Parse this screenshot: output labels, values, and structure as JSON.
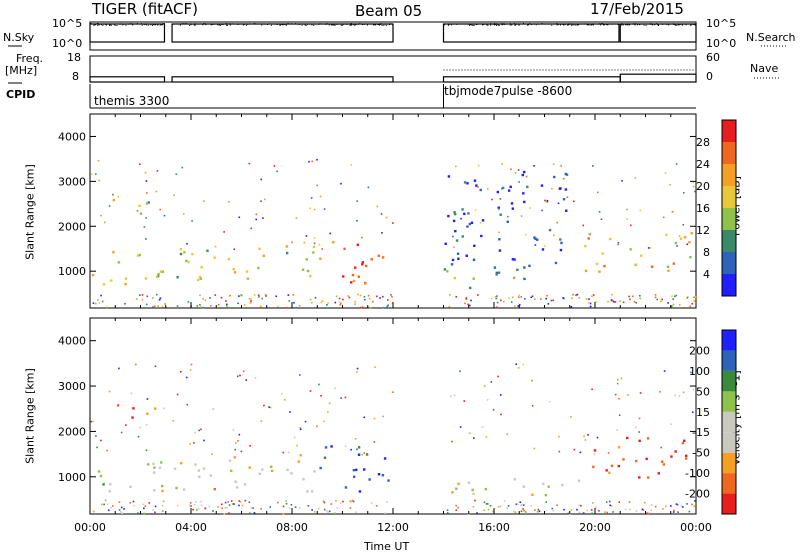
{
  "header": {
    "radar": "TIGER (fitACF)",
    "beam": "Beam 05",
    "date": "17/Feb/2015"
  },
  "sidebar_labels": {
    "nsky": "N.Sky",
    "freq_line1": "Freq.",
    "freq_line2": "[MHz]",
    "cpid": "CPID",
    "nsearch": "N.Search",
    "nave": "Nave"
  },
  "cpid_labels": [
    "themis 3300",
    "tbjmode7pulse -8600"
  ],
  "colors": {
    "power": [
      "#1f1fff",
      "#2d63b8",
      "#3a8a6a",
      "#8fc24a",
      "#e8c83a",
      "#f5a025",
      "#f06820",
      "#e81e1e"
    ],
    "velocity": [
      "#e81e1e",
      "#f06820",
      "#f5a025",
      "#c9c9c0",
      "#c9c9c0",
      "#8fc24a",
      "#3a8a3a",
      "#2d63b8",
      "#1f1fff"
    ]
  },
  "chart_data": [
    {
      "type": "line",
      "name": "nsky_nsearch",
      "ylabel": "",
      "left_ticks": [
        "10^5",
        "10^0"
      ],
      "right_ticks": [
        "10^5",
        "10^0"
      ],
      "segments_hours": [
        [
          0.0,
          2.95
        ],
        [
          3.25,
          12.0
        ],
        [
          14.0,
          20.95
        ],
        [
          21.0,
          24.0
        ]
      ]
    },
    {
      "type": "line",
      "name": "freq_nave",
      "left_ticks": [
        "18",
        "8"
      ],
      "right_ticks": [
        "60",
        "0"
      ],
      "freq_mhz": [
        {
          "start": 0.0,
          "end": 2.95,
          "value": 10
        },
        {
          "start": 3.25,
          "end": 12.0,
          "value": 10
        },
        {
          "start": 14.0,
          "end": 21.0,
          "value": 10
        },
        {
          "start": 21.0,
          "end": 24.0,
          "value": 11
        }
      ],
      "nave": [
        {
          "start": 14.0,
          "end": 24.0,
          "value": 20
        }
      ]
    },
    {
      "type": "heatmap",
      "name": "power",
      "ylabel": "Slant Range [km]",
      "colorbar_label": "Power [dB]",
      "colorbar_ticks": [
        4,
        8,
        12,
        16,
        20,
        24,
        28
      ],
      "y_ticks": [
        1000,
        2000,
        3000,
        4000
      ],
      "ylim": [
        180,
        4500
      ],
      "xlim_hours": [
        0,
        24
      ],
      "regions": [
        {
          "t0": 0.0,
          "t1": 2.9,
          "r0": 700,
          "r1": 1500,
          "level": 0.55
        },
        {
          "t0": 0.6,
          "t1": 2.6,
          "r0": 2300,
          "r1": 2700,
          "level": 0.45
        },
        {
          "t0": 3.3,
          "t1": 9.0,
          "r0": 800,
          "r1": 1600,
          "level": 0.5
        },
        {
          "t0": 9.0,
          "t1": 11.8,
          "r0": 700,
          "r1": 1700,
          "level": 0.85
        },
        {
          "t0": 14.0,
          "t1": 17.5,
          "r0": 600,
          "r1": 1100,
          "level": 0.35
        },
        {
          "t0": 14.0,
          "t1": 19.0,
          "r0": 1100,
          "r1": 3300,
          "level": 0.12
        },
        {
          "t0": 19.5,
          "t1": 23.8,
          "r0": 1000,
          "r1": 1900,
          "level": 0.6
        }
      ]
    },
    {
      "type": "heatmap",
      "name": "velocity",
      "ylabel": "Slant Range [km]",
      "colorbar_label": "Velocity [m s^-1]",
      "colorbar_ticks": [
        -200,
        -100,
        -50,
        -15,
        15,
        50,
        100,
        200
      ],
      "y_ticks": [
        1000,
        2000,
        3000,
        4000
      ],
      "ylim": [
        180,
        4500
      ],
      "xlim_hours": [
        0,
        24
      ],
      "x_ticks": [
        "00:00",
        "04:00",
        "08:00",
        "12:00",
        "16:00",
        "20:00",
        "00:00"
      ],
      "xlabel": "Time UT",
      "regions": [
        {
          "t0": 0.0,
          "t1": 2.9,
          "r0": 700,
          "r1": 1500,
          "level": 0.45
        },
        {
          "t0": 0.6,
          "t1": 2.6,
          "r0": 2300,
          "r1": 2700,
          "level": 0.05
        },
        {
          "t0": 3.3,
          "t1": 9.0,
          "r0": 700,
          "r1": 1500,
          "level": 0.4
        },
        {
          "t0": 9.0,
          "t1": 11.8,
          "r0": 700,
          "r1": 1700,
          "level": 0.9
        },
        {
          "t0": 14.0,
          "t1": 20.0,
          "r0": 600,
          "r1": 1000,
          "level": 0.45
        },
        {
          "t0": 19.5,
          "t1": 23.8,
          "r0": 1000,
          "r1": 1900,
          "level": 0.05
        }
      ]
    }
  ]
}
